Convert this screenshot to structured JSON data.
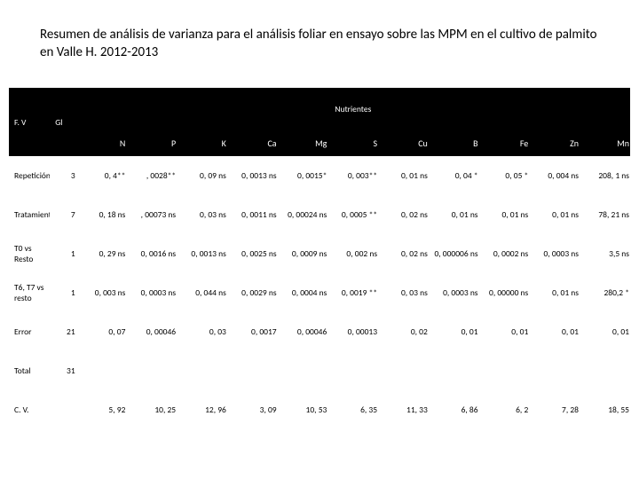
{
  "title": "Resumen de análisis de varianza para el análisis foliar en ensayo sobre las MPM en el cultivo de palmito en Valle H. 2012-2013",
  "headers": {
    "fv": "F. V",
    "gl": "Gl",
    "nutrientes": "Nutrientes",
    "cols": [
      "N",
      "P",
      "K",
      "Ca",
      "Mg",
      "S",
      "Cu",
      "B",
      "Fe",
      "Zn",
      "Mn"
    ]
  },
  "rows": [
    {
      "label": "Repetición",
      "gl": "3",
      "cells": [
        "0, 4**",
        ", 0028**",
        "0, 09 ns",
        "0, 0013 ns",
        "0, 0015*",
        "0, 003**",
        "0, 01 ns",
        "0, 04 *",
        "0, 05 *",
        "0, 004 ns",
        "208, 1 ns"
      ]
    },
    {
      "label": "Tratamiento",
      "gl": "7",
      "cells": [
        "0, 18 ns",
        ", 00073 ns",
        "0, 03 ns",
        "0, 0011 ns",
        "0, 00024 ns",
        "0, 0005 **",
        "0, 02 ns",
        "0, 01 ns",
        "0, 01 ns",
        "0, 01 ns",
        "78, 21 ns"
      ]
    },
    {
      "label": "T0 vs Resto",
      "gl": "1",
      "cells": [
        "0, 29 ns",
        "0, 0016 ns",
        "0, 0013 ns",
        "0, 0025 ns",
        "0, 0009 ns",
        "0, 002 ns",
        "0, 02 ns",
        "0, 000006 ns",
        "0, 0002 ns",
        "0, 0003 ns",
        "3,5 ns"
      ]
    },
    {
      "label": "T6, T7 vs resto",
      "gl": "1",
      "cells": [
        "0, 003 ns",
        "0, 0003 ns",
        "0, 044 ns",
        "0, 0029 ns",
        "0, 0004 ns",
        "0, 0019 **",
        "0, 03 ns",
        "0, 0003 ns",
        "0, 00000 ns",
        "0, 01 ns",
        "280,2 *"
      ]
    },
    {
      "label": "Error",
      "gl": "21",
      "cells": [
        "0, 07",
        "0, 00046",
        "0, 03",
        "0, 0017",
        "0, 00046",
        "0, 00013",
        "0, 02",
        "0, 01",
        "0, 01",
        "0, 01",
        "0, 01"
      ]
    },
    {
      "label": "Total",
      "gl": "31",
      "cells": [
        "",
        "",
        "",
        "",
        "",
        "",
        "",
        "",
        "",
        "",
        ""
      ]
    },
    {
      "label": "C. V.",
      "gl": "",
      "cells": [
        "5, 92",
        "10, 25",
        "12, 96",
        "3, 09",
        "10, 53",
        "6, 35",
        "11, 33",
        "6, 86",
        "6, 2",
        "7, 28",
        "18, 55"
      ]
    }
  ]
}
